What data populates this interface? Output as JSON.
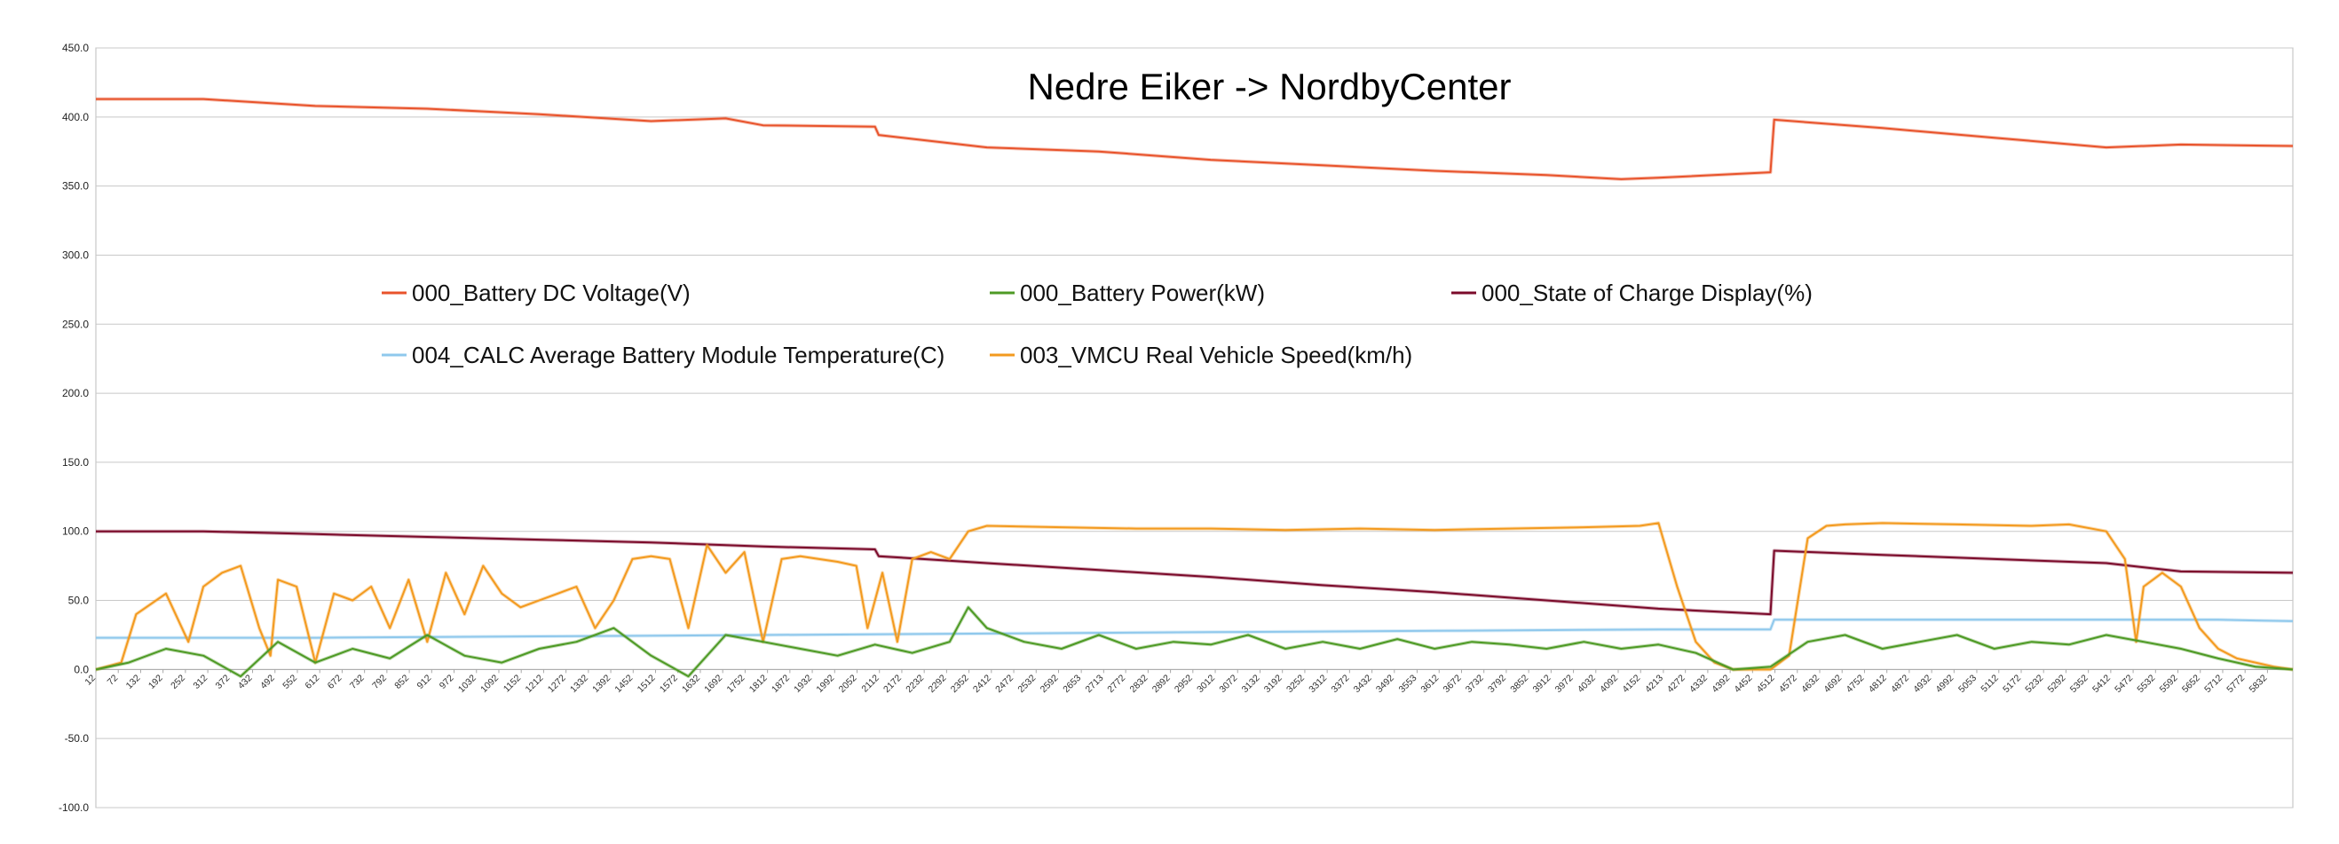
{
  "chart_data": {
    "type": "line",
    "title": "Nedre Eiker -> NordbyCenter",
    "xlabel": "",
    "ylabel": "",
    "ylim": [
      -100,
      450
    ],
    "y_ticks": [
      "450.0",
      "400.0",
      "350.0",
      "300.0",
      "250.0",
      "200.0",
      "150.0",
      "100.0",
      "50.0",
      "0.0",
      "-50.0",
      "-100.0"
    ],
    "x_range": [
      12,
      5900
    ],
    "x_tick_labels": [
      "12",
      "72",
      "132",
      "192",
      "252",
      "312",
      "372",
      "432",
      "492",
      "552",
      "612",
      "672",
      "732",
      "792",
      "852",
      "912",
      "972",
      "1032",
      "1092",
      "1152",
      "1212",
      "1272",
      "1332",
      "1392",
      "1452",
      "1512",
      "1572",
      "1632",
      "1692",
      "1752",
      "1812",
      "1872",
      "1932",
      "1992",
      "2052",
      "2112",
      "2172",
      "2232",
      "2292",
      "2352",
      "2412",
      "2472",
      "2532",
      "2592",
      "2653",
      "2713",
      "2772",
      "2832",
      "2892",
      "2952",
      "3012",
      "3072",
      "3132",
      "3192",
      "3252",
      "3312",
      "3372",
      "3432",
      "3492",
      "3553",
      "3612",
      "3672",
      "3732",
      "3792",
      "3852",
      "3912",
      "3972",
      "4032",
      "4092",
      "4152",
      "4213",
      "4272",
      "4332",
      "4392",
      "4452",
      "4512",
      "4572",
      "4632",
      "4692",
      "4752",
      "4812",
      "4872",
      "4932",
      "4992",
      "5053",
      "5112",
      "5172",
      "5232",
      "5292",
      "5352",
      "5412",
      "5472",
      "5532",
      "5592",
      "5652",
      "5712",
      "5772",
      "5832"
    ],
    "grid": true,
    "legend_position": "upper-middle, inside plot, 3 columns",
    "series": [
      {
        "name": "000_Battery DC Voltage(V)",
        "color": "#e8532b",
        "x": [
          12,
          300,
          600,
          900,
          1200,
          1500,
          1700,
          1800,
          2100,
          2110,
          2400,
          2700,
          3000,
          3300,
          3600,
          3900,
          4100,
          4200,
          4500,
          4510,
          4800,
          5100,
          5400,
          5600,
          5900
        ],
        "y": [
          413,
          413,
          408,
          406,
          402,
          397,
          399,
          394,
          393,
          387,
          378,
          375,
          369,
          365,
          361,
          358,
          355,
          356,
          360,
          398,
          392,
          385,
          378,
          380,
          379
        ]
      },
      {
        "name": "000_Battery Power(kW)",
        "color": "#4e9a25",
        "x": [
          12,
          100,
          200,
          300,
          400,
          500,
          600,
          700,
          800,
          900,
          1000,
          1100,
          1200,
          1300,
          1400,
          1500,
          1600,
          1700,
          1800,
          1900,
          2000,
          2100,
          2200,
          2300,
          2350,
          2400,
          2500,
          2600,
          2700,
          2800,
          2900,
          3000,
          3100,
          3200,
          3300,
          3400,
          3500,
          3600,
          3700,
          3800,
          3900,
          4000,
          4100,
          4200,
          4300,
          4400,
          4500,
          4600,
          4700,
          4800,
          4900,
          5000,
          5100,
          5200,
          5300,
          5400,
          5500,
          5600,
          5700,
          5800,
          5900
        ],
        "y": [
          0,
          5,
          15,
          10,
          -5,
          20,
          5,
          15,
          8,
          25,
          10,
          5,
          15,
          20,
          30,
          10,
          -5,
          25,
          20,
          15,
          10,
          18,
          12,
          20,
          45,
          30,
          20,
          15,
          25,
          15,
          20,
          18,
          25,
          15,
          20,
          15,
          22,
          15,
          20,
          18,
          15,
          20,
          15,
          18,
          12,
          0,
          2,
          20,
          25,
          15,
          20,
          25,
          15,
          20,
          18,
          25,
          20,
          15,
          8,
          2,
          0
        ]
      },
      {
        "name": "000_State of Charge Display(%)",
        "color": "#7b0a2a",
        "x": [
          12,
          300,
          600,
          900,
          1200,
          1500,
          1800,
          2100,
          2110,
          2400,
          2700,
          3000,
          3300,
          3600,
          3900,
          4200,
          4500,
          4510,
          4800,
          5100,
          5400,
          5600,
          5900
        ],
        "y": [
          100,
          100,
          98,
          96,
          94,
          92,
          89,
          87,
          82,
          77,
          72,
          67,
          61,
          56,
          50,
          44,
          40,
          86,
          83,
          80,
          77,
          71,
          70
        ]
      },
      {
        "name": "004_CALC Average Battery Module Temperature(C)",
        "color": "#8fc8ec",
        "x": [
          12,
          600,
          1200,
          1800,
          2400,
          3000,
          3600,
          4200,
          4500,
          4510,
          5100,
          5700,
          5900
        ],
        "y": [
          23,
          23,
          24,
          25,
          26,
          27,
          28,
          29,
          29,
          36,
          36,
          36,
          35
        ]
      },
      {
        "name": "003_VMCU Real Vehicle Speed(km/h)",
        "color": "#f39a1f",
        "x": [
          12,
          80,
          120,
          200,
          260,
          300,
          350,
          400,
          450,
          480,
          500,
          550,
          600,
          650,
          700,
          750,
          800,
          850,
          900,
          950,
          1000,
          1050,
          1100,
          1150,
          1200,
          1250,
          1300,
          1350,
          1400,
          1450,
          1500,
          1550,
          1600,
          1650,
          1700,
          1750,
          1800,
          1850,
          1900,
          1950,
          2000,
          2050,
          2080,
          2120,
          2160,
          2200,
          2250,
          2300,
          2350,
          2400,
          2600,
          2800,
          3000,
          3200,
          3400,
          3600,
          3800,
          4000,
          4150,
          4200,
          4250,
          4300,
          4350,
          4400,
          4450,
          4500,
          4550,
          4600,
          4650,
          4700,
          4800,
          5000,
          5200,
          5300,
          5400,
          5450,
          5480,
          5500,
          5550,
          5600,
          5650,
          5700,
          5750,
          5800,
          5850,
          5900
        ],
        "y": [
          0,
          5,
          40,
          55,
          20,
          60,
          70,
          75,
          30,
          10,
          65,
          60,
          5,
          55,
          50,
          60,
          30,
          65,
          20,
          70,
          40,
          75,
          55,
          45,
          50,
          55,
          60,
          30,
          50,
          80,
          82,
          80,
          30,
          90,
          70,
          85,
          20,
          80,
          82,
          80,
          78,
          75,
          30,
          70,
          20,
          80,
          85,
          80,
          100,
          104,
          103,
          102,
          102,
          101,
          102,
          101,
          102,
          103,
          104,
          106,
          60,
          20,
          5,
          0,
          0,
          0,
          10,
          95,
          104,
          105,
          106,
          105,
          104,
          105,
          100,
          80,
          20,
          60,
          70,
          60,
          30,
          15,
          8,
          5,
          2,
          0
        ]
      }
    ]
  }
}
